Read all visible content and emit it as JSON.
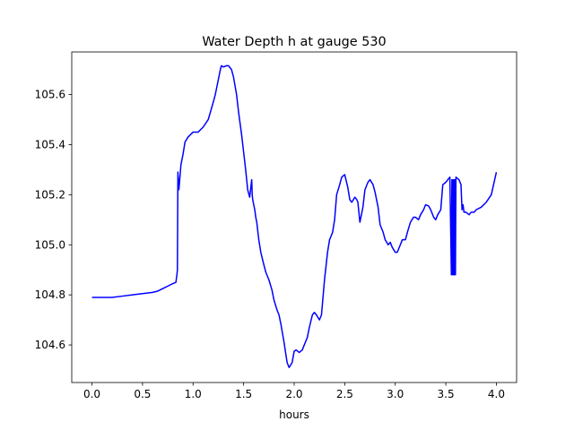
{
  "chart_data": {
    "type": "line",
    "title": "Water Depth h at gauge 530",
    "xlabel": "hours",
    "ylabel": "",
    "xlim": [
      -0.2,
      4.2
    ],
    "ylim": [
      104.45,
      105.77
    ],
    "xticks": [
      0.0,
      0.5,
      1.0,
      1.5,
      2.0,
      2.5,
      3.0,
      3.5,
      4.0
    ],
    "xtick_labels": [
      "0.0",
      "0.5",
      "1.0",
      "1.5",
      "2.0",
      "2.5",
      "3.0",
      "3.5",
      "4.0"
    ],
    "yticks": [
      104.6,
      104.8,
      105.0,
      105.2,
      105.4,
      105.6
    ],
    "ytick_labels": [
      "104.6",
      "104.8",
      "105.0",
      "105.2",
      "105.4",
      "105.6"
    ],
    "grid": false,
    "legend": "none",
    "series": [
      {
        "color": "#0000ff",
        "x": [
          0.0,
          0.1,
          0.2,
          0.3,
          0.4,
          0.5,
          0.6,
          0.65,
          0.7,
          0.75,
          0.8,
          0.83,
          0.84,
          0.845,
          0.85,
          0.86,
          0.88,
          0.9,
          0.92,
          0.95,
          1.0,
          1.05,
          1.1,
          1.15,
          1.2,
          1.22,
          1.25,
          1.27,
          1.28,
          1.3,
          1.33,
          1.35,
          1.38,
          1.4,
          1.43,
          1.45,
          1.48,
          1.5,
          1.52,
          1.54,
          1.56,
          1.58,
          1.585,
          1.59,
          1.6,
          1.61,
          1.62,
          1.63,
          1.65,
          1.67,
          1.7,
          1.72,
          1.75,
          1.78,
          1.8,
          1.83,
          1.85,
          1.87,
          1.9,
          1.93,
          1.95,
          1.98,
          2.0,
          2.02,
          2.05,
          2.08,
          2.1,
          2.13,
          2.15,
          2.18,
          2.2,
          2.22,
          2.25,
          2.27,
          2.3,
          2.33,
          2.35,
          2.38,
          2.4,
          2.42,
          2.45,
          2.47,
          2.5,
          2.53,
          2.55,
          2.57,
          2.6,
          2.62,
          2.63,
          2.65,
          2.68,
          2.7,
          2.73,
          2.75,
          2.78,
          2.8,
          2.83,
          2.85,
          2.88,
          2.9,
          2.93,
          2.95,
          2.97,
          3.0,
          3.02,
          3.05,
          3.07,
          3.1,
          3.12,
          3.15,
          3.18,
          3.2,
          3.23,
          3.25,
          3.28,
          3.3,
          3.33,
          3.35,
          3.38,
          3.4,
          3.42,
          3.45,
          3.47,
          3.5,
          3.52,
          3.54,
          3.555,
          3.56,
          3.565,
          3.57,
          3.575,
          3.58,
          3.585,
          3.59,
          3.595,
          3.6,
          3.63,
          3.65,
          3.66,
          3.67,
          3.68,
          3.7,
          3.73,
          3.75,
          3.78,
          3.8,
          3.85,
          3.9,
          3.95,
          4.0
        ],
        "y": [
          104.79,
          104.79,
          104.79,
          104.795,
          104.8,
          104.805,
          104.81,
          104.815,
          104.825,
          104.835,
          104.845,
          104.85,
          104.88,
          104.9,
          105.29,
          105.22,
          105.32,
          105.36,
          105.41,
          105.43,
          105.45,
          105.45,
          105.47,
          105.5,
          105.57,
          105.6,
          105.66,
          105.7,
          105.715,
          105.71,
          105.715,
          105.715,
          105.7,
          105.67,
          105.6,
          105.53,
          105.44,
          105.37,
          105.3,
          105.22,
          105.19,
          105.26,
          105.2,
          105.18,
          105.16,
          105.14,
          105.11,
          105.09,
          105.02,
          104.97,
          104.92,
          104.89,
          104.86,
          104.82,
          104.78,
          104.74,
          104.72,
          104.68,
          104.61,
          104.53,
          104.51,
          104.53,
          104.575,
          104.58,
          104.57,
          104.58,
          104.6,
          104.63,
          104.67,
          104.72,
          104.73,
          104.72,
          104.7,
          104.72,
          104.86,
          104.97,
          105.02,
          105.05,
          105.1,
          105.2,
          105.24,
          105.27,
          105.28,
          105.23,
          105.18,
          105.17,
          105.19,
          105.18,
          105.17,
          105.09,
          105.15,
          105.22,
          105.25,
          105.26,
          105.24,
          105.21,
          105.15,
          105.08,
          105.05,
          105.02,
          105.0,
          105.01,
          104.99,
          104.97,
          104.97,
          105.0,
          105.02,
          105.02,
          105.05,
          105.09,
          105.11,
          105.11,
          105.1,
          105.12,
          105.14,
          105.16,
          105.155,
          105.14,
          105.11,
          105.1,
          105.12,
          105.14,
          105.24,
          105.25,
          105.26,
          105.27,
          104.88,
          105.26,
          104.88,
          105.26,
          104.88,
          105.26,
          104.88,
          105.26,
          104.88,
          105.27,
          105.26,
          105.24,
          105.14,
          105.16,
          105.13,
          105.13,
          105.12,
          105.13,
          105.13,
          105.14,
          105.15,
          105.17,
          105.2,
          105.29
        ]
      }
    ]
  }
}
